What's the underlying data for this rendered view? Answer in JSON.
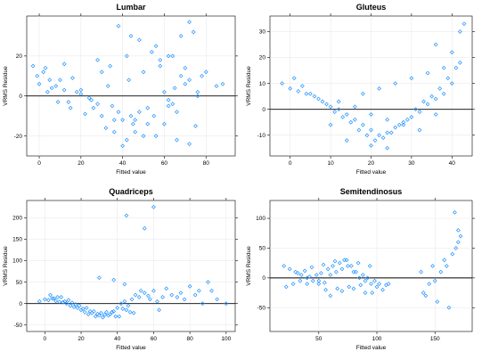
{
  "figure": {
    "point_color": "#1e90ff",
    "marker": "open-diamond"
  },
  "chart_data": [
    {
      "type": "scatter",
      "title": "Lumbar",
      "xlabel": "Fitted value",
      "ylabel": "VRMS Residue",
      "xlim": [
        -6,
        94
      ],
      "ylim": [
        -30,
        40
      ],
      "xticks": [
        0,
        20,
        40,
        60,
        80
      ],
      "yticks": [
        -20,
        0,
        20
      ],
      "grid": true,
      "reference_line_y": 0,
      "series": [
        {
          "x": [
            -3,
            -1,
            2,
            5,
            8,
            12,
            18,
            25,
            35,
            48,
            60,
            72,
            85,
            0,
            4,
            9,
            15,
            22,
            30,
            40,
            52,
            65,
            78,
            88,
            3,
            10,
            20,
            28,
            38,
            45,
            55,
            62,
            70,
            80,
            14,
            24,
            33,
            43,
            50,
            58,
            68,
            75,
            6,
            16,
            26,
            36,
            46,
            56,
            66,
            76,
            12,
            32,
            42,
            52,
            62,
            72,
            38,
            44,
            48,
            54,
            58,
            64,
            68,
            72,
            36,
            40,
            46,
            50,
            60,
            66,
            28,
            34,
            42,
            56,
            62,
            70,
            74,
            20,
            30,
            44,
            64,
            76
          ],
          "y": [
            15,
            10,
            12,
            8,
            5,
            3,
            2,
            -2,
            -5,
            -8,
            2,
            8,
            5,
            6,
            2,
            -3,
            -6,
            -9,
            -10,
            -12,
            -6,
            4,
            10,
            6,
            14,
            8,
            1,
            -4,
            -8,
            -14,
            -10,
            -2,
            6,
            12,
            -3,
            -1,
            5,
            8,
            12,
            18,
            10,
            -15,
            4,
            9,
            -6,
            -12,
            -18,
            -20,
            -8,
            2,
            16,
            -16,
            -22,
            -14,
            -5,
            -24,
            35,
            30,
            28,
            22,
            15,
            20,
            30,
            37,
            -18,
            -25,
            -12,
            -20,
            -14,
            -22,
            18,
            15,
            20,
            25,
            20,
            14,
            32,
            3,
            12,
            -10,
            -4,
            0
          ]
        }
      ]
    },
    {
      "type": "scatter",
      "title": "Gluteus",
      "xlabel": "Fitted value",
      "ylabel": "VRMS Residue",
      "xlim": [
        -5,
        45
      ],
      "ylim": [
        -18,
        36
      ],
      "xticks": [
        0,
        10,
        20,
        30,
        40
      ],
      "yticks": [
        -10,
        0,
        10,
        20,
        30
      ],
      "grid": true,
      "reference_line_y": 0,
      "series": [
        {
          "x": [
            -2,
            0,
            2,
            4,
            6,
            8,
            10,
            12,
            14,
            16,
            18,
            20,
            22,
            24,
            26,
            28,
            30,
            32,
            34,
            36,
            38,
            40,
            42,
            1,
            3,
            5,
            7,
            9,
            11,
            13,
            15,
            17,
            19,
            21,
            23,
            25,
            27,
            29,
            31,
            33,
            35,
            37,
            39,
            41,
            12,
            16,
            20,
            24,
            28,
            32,
            36,
            18,
            22,
            26,
            30,
            34,
            38,
            40,
            42,
            43,
            36,
            20,
            14,
            10,
            24
          ],
          "y": [
            10,
            8,
            7,
            6,
            5,
            3,
            1,
            0,
            -2,
            -4,
            -6,
            -8,
            -10,
            -9,
            -7,
            -5,
            -3,
            -1,
            2,
            4,
            6,
            10,
            18,
            12,
            9,
            6,
            4,
            2,
            -1,
            -3,
            -5,
            -8,
            -10,
            -12,
            -11,
            -9,
            -6,
            -4,
            0,
            3,
            5,
            8,
            12,
            16,
            3,
            1,
            -2,
            -4,
            -6,
            -8,
            -2,
            6,
            8,
            10,
            12,
            14,
            16,
            22,
            30,
            33,
            25,
            -14,
            -12,
            -6,
            -15
          ]
        }
      ]
    },
    {
      "type": "scatter",
      "title": "Quadriceps",
      "xlabel": "Fitted value",
      "ylabel": "VRMS Residue",
      "xlim": [
        -10,
        105
      ],
      "ylim": [
        -65,
        240
      ],
      "xticks": [
        0,
        20,
        40,
        60,
        80,
        100
      ],
      "yticks": [
        -50,
        0,
        50,
        100,
        150,
        200
      ],
      "grid": true,
      "reference_line_y": 0,
      "series": [
        {
          "x": [
            -3,
            0,
            2,
            4,
            6,
            8,
            10,
            12,
            14,
            16,
            18,
            20,
            22,
            24,
            26,
            28,
            30,
            32,
            34,
            36,
            38,
            40,
            42,
            44,
            46,
            48,
            50,
            52,
            55,
            58,
            60,
            62,
            65,
            70,
            75,
            80,
            85,
            90,
            95,
            100,
            5,
            9,
            13,
            17,
            21,
            25,
            29,
            33,
            37,
            41,
            45,
            49,
            3,
            7,
            11,
            15,
            19,
            23,
            27,
            31,
            35,
            39,
            43,
            47,
            53,
            57,
            63,
            67,
            73,
            77,
            83,
            87,
            92,
            30,
            45,
            55,
            60,
            44,
            38
          ],
          "y": [
            5,
            10,
            8,
            12,
            6,
            4,
            3,
            0,
            -5,
            -8,
            -10,
            -15,
            -20,
            -25,
            -22,
            -30,
            -28,
            -32,
            -20,
            -25,
            -18,
            -10,
            0,
            5,
            -5,
            10,
            20,
            15,
            25,
            10,
            30,
            5,
            15,
            20,
            25,
            40,
            30,
            50,
            10,
            0,
            12,
            15,
            8,
            -2,
            -12,
            -18,
            -24,
            -26,
            -20,
            -30,
            -15,
            -22,
            20,
            15,
            5,
            2,
            -5,
            -10,
            -18,
            -22,
            -28,
            -30,
            -12,
            -20,
            30,
            18,
            -15,
            35,
            15,
            10,
            20,
            0,
            30,
            60,
            205,
            175,
            225,
            45,
            55
          ]
        }
      ]
    },
    {
      "type": "scatter",
      "title": "Semitendinosus",
      "xlabel": "Fitted value",
      "ylabel": "VRMS Residue",
      "xlim": [
        8,
        182
      ],
      "ylim": [
        -90,
        130
      ],
      "xticks": [
        50,
        100,
        150
      ],
      "yticks": [
        -50,
        0,
        50,
        100
      ],
      "grid": true,
      "reference_line_y": 0,
      "series": [
        {
          "x": [
            20,
            25,
            30,
            35,
            40,
            45,
            50,
            55,
            60,
            65,
            70,
            75,
            80,
            85,
            90,
            95,
            100,
            105,
            110,
            140,
            145,
            150,
            155,
            160,
            165,
            170,
            22,
            28,
            34,
            42,
            48,
            52,
            58,
            62,
            68,
            72,
            78,
            82,
            88,
            92,
            98,
            102,
            108,
            32,
            38,
            44,
            54,
            64,
            74,
            84,
            94,
            138,
            148,
            158,
            168,
            172,
            56,
            66,
            76,
            86,
            96,
            142,
            152,
            162,
            167,
            170,
            60,
            70,
            80,
            40,
            50,
            90
          ],
          "y": [
            20,
            15,
            10,
            5,
            0,
            -5,
            -10,
            -8,
            5,
            10,
            15,
            20,
            10,
            0,
            -5,
            -10,
            -15,
            -20,
            -10,
            -25,
            -10,
            -5,
            10,
            20,
            40,
            80,
            -15,
            -10,
            -5,
            2,
            5,
            8,
            15,
            20,
            25,
            30,
            20,
            10,
            5,
            0,
            -5,
            -10,
            -12,
            8,
            12,
            18,
            22,
            28,
            30,
            25,
            20,
            10,
            20,
            30,
            50,
            70,
            -20,
            -18,
            -15,
            -12,
            -25,
            -30,
            -40,
            -50,
            110,
            60,
            -30,
            -22,
            -18,
            -10,
            -5,
            -25
          ]
        }
      ]
    }
  ]
}
